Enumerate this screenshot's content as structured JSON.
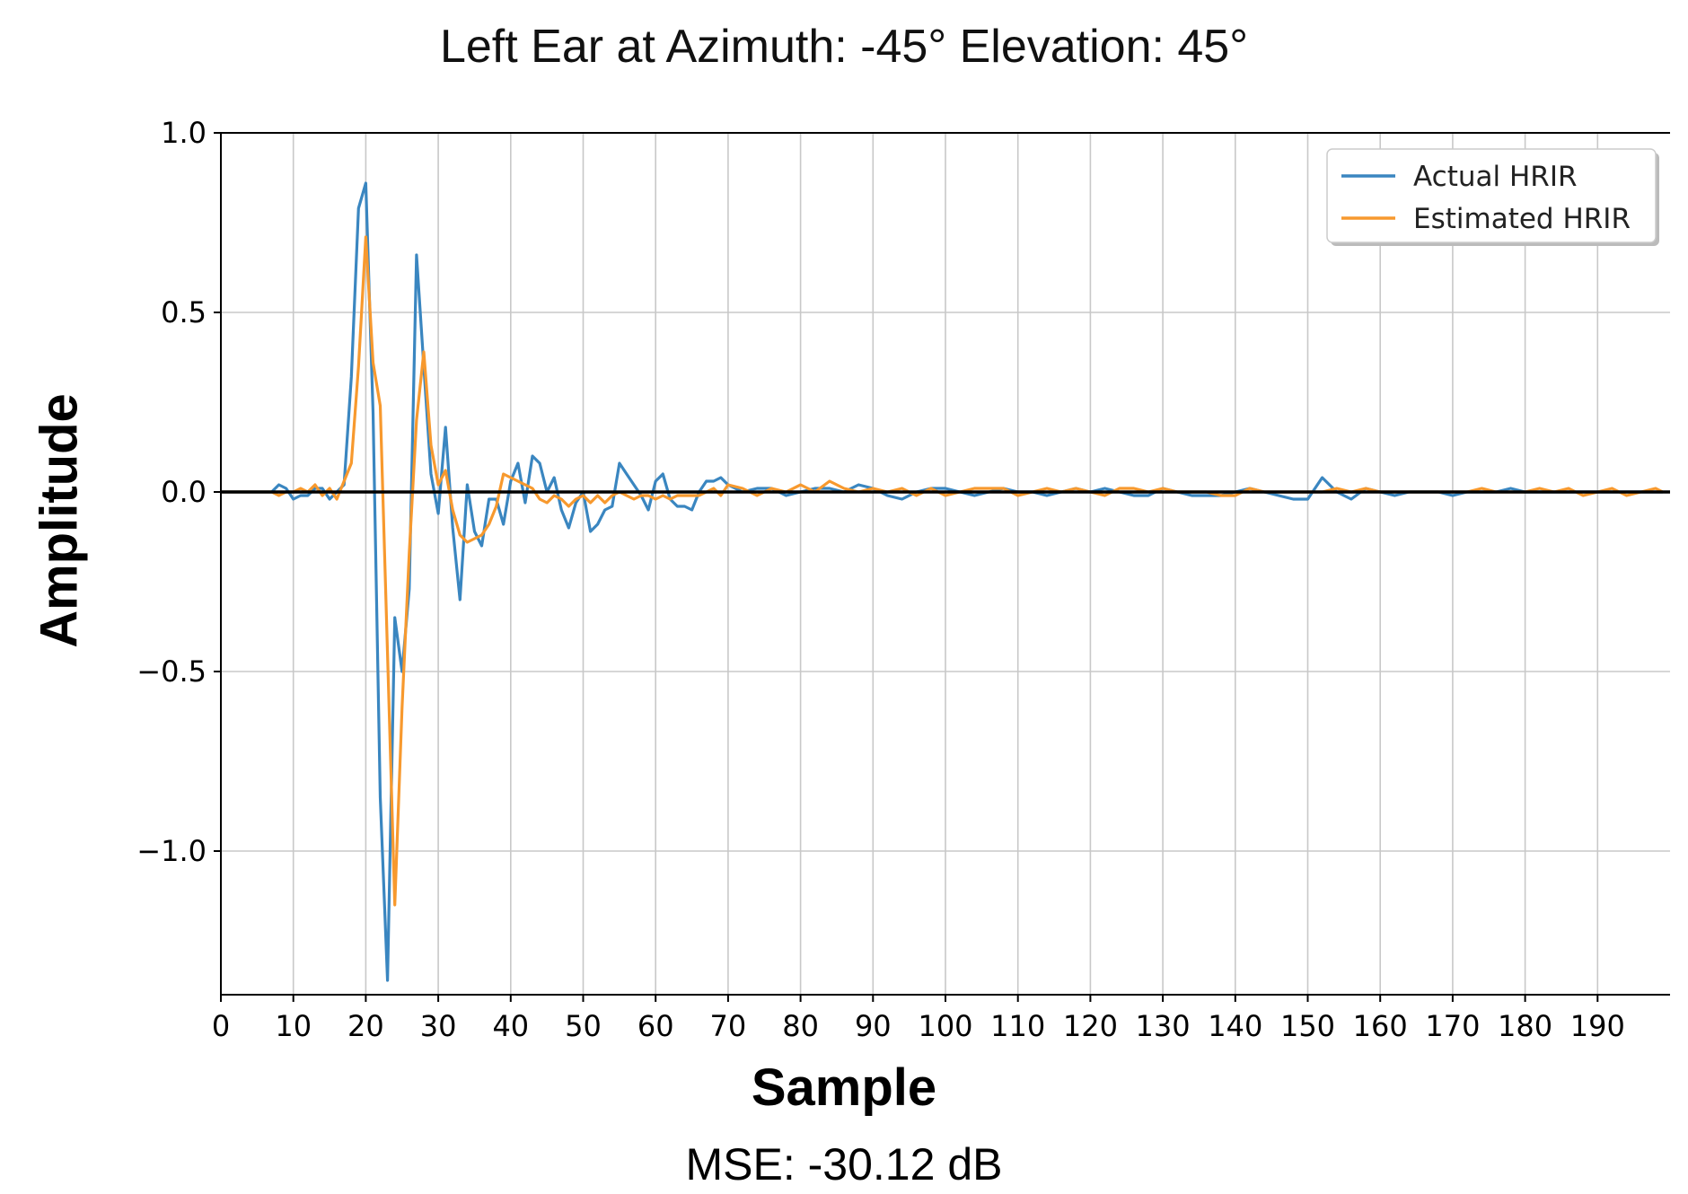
{
  "title": "Left Ear at Azimuth: -45°  Elevation: 45°",
  "xlabel": "Sample",
  "ylabel": "Amplitude",
  "footnote": "MSE: -30.12 dB",
  "colors": {
    "actual": "#3a86c0",
    "estimated": "#f7992e",
    "grid": "#c8c8c8",
    "zero_line": "#000000"
  },
  "chart_data": {
    "type": "line",
    "title": "Left Ear at Azimuth: -45°  Elevation: 45°",
    "xlabel": "Sample",
    "ylabel": "Amplitude",
    "xlim": [
      0,
      200
    ],
    "ylim": [
      -1.4,
      1.0
    ],
    "xticks": [
      0,
      10,
      20,
      30,
      40,
      50,
      60,
      70,
      80,
      90,
      100,
      110,
      120,
      130,
      140,
      150,
      160,
      170,
      180,
      190
    ],
    "xtick_labels": [
      "0",
      "10",
      "20",
      "30",
      "40",
      "50",
      "60",
      "70",
      "80",
      "90",
      "100",
      "110",
      "120",
      "130",
      "140",
      "150",
      "160",
      "170",
      "180",
      "190"
    ],
    "yticks": [
      1.0,
      0.5,
      0.0,
      -0.5,
      -1.0
    ],
    "ytick_labels": [
      "1.0",
      "0.5",
      "0.0",
      "−0.5",
      "−1.0"
    ],
    "grid": true,
    "legend_position": "top-right",
    "zero_line": true,
    "series": [
      {
        "name": "Actual HRIR",
        "color": "#3a86c0",
        "x": [
          0,
          1,
          2,
          3,
          4,
          5,
          6,
          7,
          8,
          9,
          10,
          11,
          12,
          13,
          14,
          15,
          16,
          17,
          18,
          19,
          20,
          21,
          22,
          23,
          24,
          25,
          26,
          27,
          28,
          29,
          30,
          31,
          32,
          33,
          34,
          35,
          36,
          37,
          38,
          39,
          40,
          41,
          42,
          43,
          44,
          45,
          46,
          47,
          48,
          49,
          50,
          51,
          52,
          53,
          54,
          55,
          56,
          57,
          58,
          59,
          60,
          61,
          62,
          63,
          64,
          65,
          66,
          67,
          68,
          69,
          70,
          72,
          74,
          76,
          78,
          80,
          82,
          84,
          86,
          88,
          90,
          92,
          94,
          96,
          98,
          100,
          102,
          104,
          106,
          108,
          110,
          112,
          114,
          116,
          118,
          120,
          122,
          124,
          126,
          128,
          130,
          132,
          134,
          136,
          138,
          140,
          142,
          144,
          146,
          148,
          150,
          152,
          154,
          156,
          158,
          160,
          162,
          164,
          166,
          168,
          170,
          172,
          174,
          176,
          178,
          180,
          182,
          184,
          186,
          188,
          190,
          192,
          194,
          196,
          198,
          199
        ],
        "y": [
          0,
          0,
          0,
          0,
          0,
          0,
          0,
          0,
          0.02,
          0.01,
          -0.02,
          -0.01,
          -0.01,
          0.01,
          0.01,
          -0.02,
          0.0,
          0.02,
          0.32,
          0.79,
          0.86,
          0.22,
          -0.85,
          -1.36,
          -0.35,
          -0.5,
          -0.27,
          0.66,
          0.35,
          0.05,
          -0.06,
          0.18,
          -0.1,
          -0.3,
          0.02,
          -0.11,
          -0.15,
          -0.02,
          -0.02,
          -0.09,
          0.03,
          0.08,
          -0.03,
          0.1,
          0.08,
          0.0,
          0.04,
          -0.05,
          -0.1,
          -0.03,
          0.0,
          -0.11,
          -0.09,
          -0.05,
          -0.04,
          0.08,
          0.05,
          0.02,
          -0.01,
          -0.05,
          0.03,
          0.05,
          -0.02,
          -0.04,
          -0.04,
          -0.05,
          0.0,
          0.03,
          0.03,
          0.04,
          0.02,
          0.0,
          0.01,
          0.01,
          -0.01,
          0.0,
          0.01,
          0.01,
          0.0,
          0.02,
          0.01,
          -0.01,
          -0.02,
          0.0,
          0.01,
          0.01,
          0.0,
          -0.01,
          0.0,
          0.01,
          0.0,
          0.0,
          -0.01,
          0.0,
          0.01,
          0.0,
          0.01,
          0.0,
          -0.01,
          -0.01,
          0.01,
          0.0,
          -0.01,
          -0.01,
          -0.01,
          0.0,
          0.01,
          0.0,
          -0.01,
          -0.02,
          -0.02,
          0.04,
          0.0,
          -0.02,
          0.01,
          0.0,
          -0.01,
          0.0,
          0.0,
          0.0,
          -0.01,
          0.0,
          0.0,
          0.0,
          0.01,
          0.0,
          0.0,
          0.0,
          0.0,
          0.0,
          0.0,
          0.0,
          0.0,
          0.0,
          0.0,
          0.0
        ]
      },
      {
        "name": "Estimated HRIR",
        "color": "#f7992e",
        "x": [
          0,
          1,
          2,
          3,
          4,
          5,
          6,
          7,
          8,
          9,
          10,
          11,
          12,
          13,
          14,
          15,
          16,
          17,
          18,
          19,
          20,
          21,
          22,
          23,
          24,
          25,
          26,
          27,
          28,
          29,
          30,
          31,
          32,
          33,
          34,
          35,
          36,
          37,
          38,
          39,
          40,
          41,
          42,
          43,
          44,
          45,
          46,
          47,
          48,
          49,
          50,
          51,
          52,
          53,
          54,
          55,
          56,
          57,
          58,
          59,
          60,
          61,
          62,
          63,
          64,
          65,
          66,
          67,
          68,
          69,
          70,
          72,
          74,
          76,
          78,
          80,
          82,
          84,
          86,
          88,
          90,
          92,
          94,
          96,
          98,
          100,
          102,
          104,
          106,
          108,
          110,
          112,
          114,
          116,
          118,
          120,
          122,
          124,
          126,
          128,
          130,
          132,
          134,
          136,
          138,
          140,
          142,
          144,
          146,
          148,
          150,
          152,
          154,
          156,
          158,
          160,
          162,
          164,
          166,
          168,
          170,
          172,
          174,
          176,
          178,
          180,
          182,
          184,
          186,
          188,
          190,
          192,
          194,
          196,
          198,
          199
        ],
        "y": [
          0,
          0,
          0,
          0,
          0,
          0,
          0,
          0,
          -0.01,
          0.0,
          0.0,
          0.01,
          0.0,
          0.02,
          -0.01,
          0.01,
          -0.02,
          0.03,
          0.08,
          0.35,
          0.71,
          0.36,
          0.24,
          -0.45,
          -1.15,
          -0.6,
          -0.17,
          0.2,
          0.39,
          0.13,
          0.02,
          0.06,
          -0.05,
          -0.12,
          -0.14,
          -0.13,
          -0.12,
          -0.09,
          -0.04,
          0.05,
          0.04,
          0.03,
          0.02,
          0.01,
          -0.02,
          -0.03,
          -0.01,
          -0.02,
          -0.04,
          -0.02,
          -0.01,
          -0.03,
          -0.01,
          -0.03,
          -0.01,
          0.0,
          -0.01,
          -0.02,
          -0.01,
          -0.01,
          -0.02,
          -0.01,
          -0.02,
          -0.01,
          -0.01,
          -0.01,
          -0.01,
          0.0,
          0.01,
          -0.01,
          0.02,
          0.01,
          -0.01,
          0.01,
          0.0,
          0.02,
          0.0,
          0.03,
          0.01,
          0.0,
          0.01,
          0.0,
          0.01,
          -0.01,
          0.01,
          -0.01,
          0.0,
          0.01,
          0.01,
          0.01,
          -0.01,
          0.0,
          0.01,
          0.0,
          0.01,
          0.0,
          -0.01,
          0.01,
          0.01,
          0.0,
          0.01,
          0.0,
          0.0,
          0.0,
          -0.01,
          -0.01,
          0.01,
          0.0,
          0.0,
          0.0,
          0.0,
          0.0,
          0.01,
          0.0,
          0.01,
          0.0,
          0.0,
          0.0,
          0.0,
          0.0,
          0.0,
          0.0,
          0.01,
          0.0,
          0.0,
          0.0,
          0.01,
          0.0,
          0.01,
          -0.01,
          0.0,
          0.01,
          -0.01,
          0.0,
          0.01,
          0.0
        ]
      }
    ]
  }
}
